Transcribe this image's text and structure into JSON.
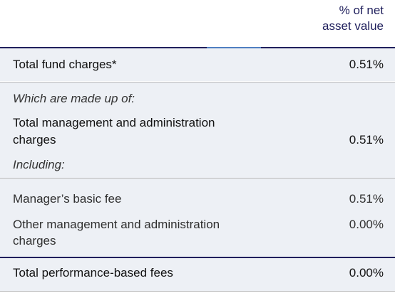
{
  "header": {
    "line1": "% of net",
    "line2": "asset value"
  },
  "rows": {
    "total_fund_charges": {
      "label": "Total fund charges*",
      "value": "0.51%"
    },
    "made_up_of": {
      "label": "Which are made up of:"
    },
    "total_mgmt_admin": {
      "label_line1": "Total management and administration",
      "label_line2": "charges",
      "value": "0.51%"
    },
    "including": {
      "label": "Including:"
    },
    "managers_basic_fee": {
      "label": "Manager’s basic fee",
      "value": "0.51%"
    },
    "other_mgmt_admin": {
      "label_line1": "Other management and administration",
      "label_line2": "charges",
      "value": "0.00%"
    },
    "total_perf_fees": {
      "label": "Total performance-based fees",
      "value": "0.00%"
    }
  }
}
